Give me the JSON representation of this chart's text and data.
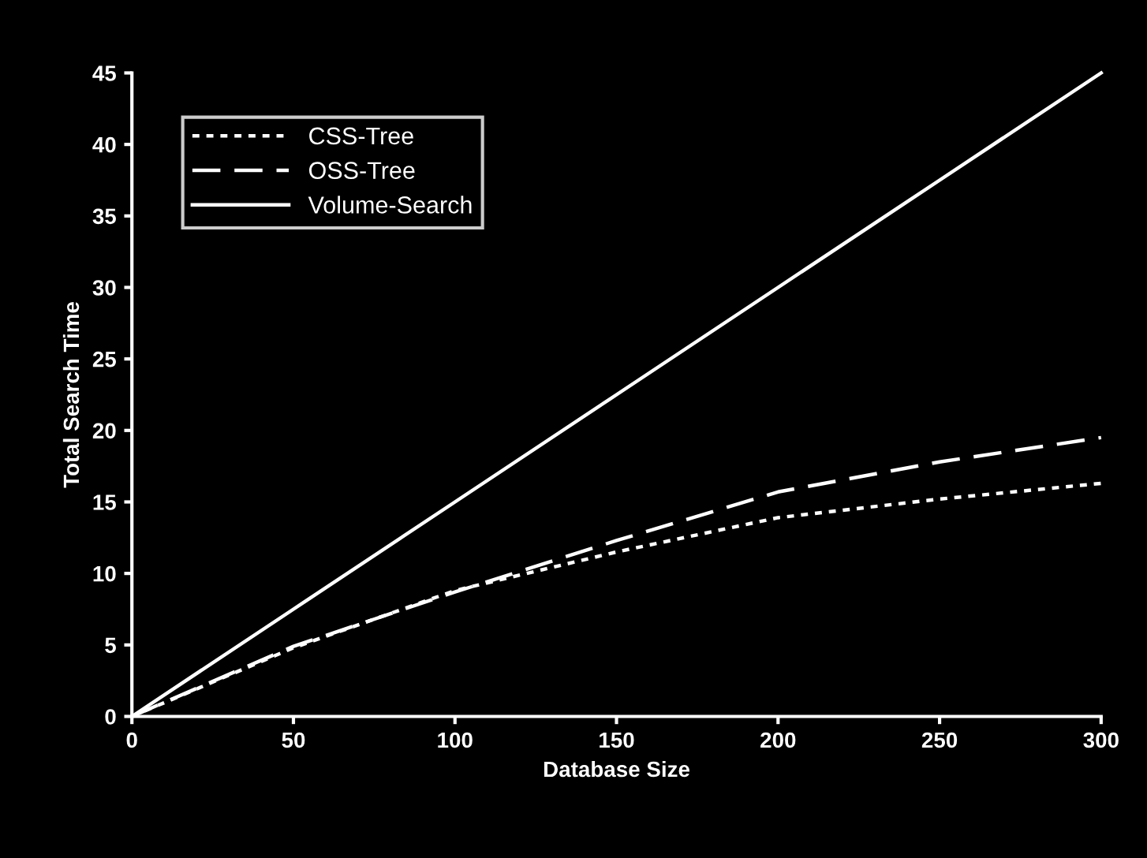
{
  "chart_data": {
    "type": "line",
    "xlabel": "Database Size",
    "ylabel": "Total Search Time",
    "x": [
      0,
      50,
      100,
      150,
      200,
      250,
      300
    ],
    "series": [
      {
        "name": "CSS-Tree",
        "color": "#ffffff",
        "line_style": "dotted",
        "values": [
          0,
          4.8,
          8.8,
          11.5,
          13.9,
          15.2,
          16.3
        ]
      },
      {
        "name": "OSS-Tree",
        "color": "#ffffff",
        "line_style": "dashed",
        "values": [
          0,
          4.9,
          8.7,
          12.3,
          15.7,
          17.8,
          19.5
        ]
      },
      {
        "name": "Volume-Search",
        "color": "#ffffff",
        "line_style": "solid",
        "values": [
          0,
          7.5,
          15,
          22.5,
          30,
          37.5,
          45
        ]
      }
    ],
    "xlim": [
      0,
      300
    ],
    "ylim": [
      0,
      45
    ],
    "xticks": [
      0,
      50,
      100,
      150,
      200,
      250,
      300
    ],
    "yticks": [
      0,
      5,
      10,
      15,
      20,
      25,
      30,
      35,
      40,
      45
    ],
    "grid": false,
    "legend": "top left",
    "marker": "none"
  }
}
